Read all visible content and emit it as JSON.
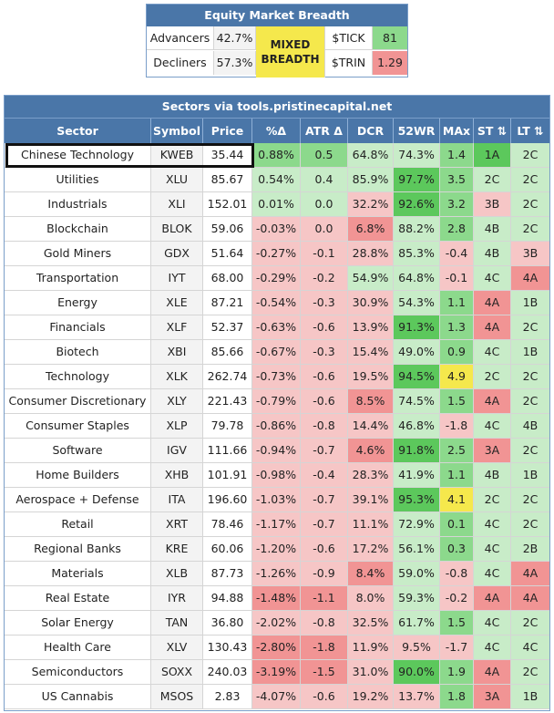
{
  "breadth": {
    "title": "Equity Market Breadth",
    "advancers_label": "Advancers",
    "advancers_value": "42.7%",
    "decliners_label": "Decliners",
    "decliners_value": "57.3%",
    "state_line1": "MIXED",
    "state_line2": "BREADTH",
    "tick_label": "$TICK",
    "tick_value": "81",
    "trin_label": "$TRIN",
    "trin_value": "1.29",
    "colors": {
      "mixed": "#f5e84c",
      "tick": "#8cd98c",
      "trin": "#f19494"
    }
  },
  "sectors": {
    "title": "Sectors via tools.pristinecapital.net",
    "columns": [
      "Sector",
      "Symbol",
      "Price",
      "%Δ",
      "ATR Δ",
      "DCR",
      "52WR",
      "MAx",
      "ST ⇅",
      "LT ⇅"
    ],
    "rows": [
      {
        "sector": "Chinese Technology",
        "symbol": "KWEB",
        "price": "35.44",
        "pct": "0.88%",
        "atr": "0.5",
        "dcr": "64.8%",
        "wr": "74.3%",
        "max": "1.4",
        "st": "1A",
        "lt": "2C",
        "cpct": "g2",
        "catr": "g2",
        "cdcr": "g1",
        "cwr": "g1",
        "cmax": "g2",
        "cst": "g3",
        "clt": "g1"
      },
      {
        "sector": "Utilities",
        "symbol": "XLU",
        "price": "85.67",
        "pct": "0.54%",
        "atr": "0.4",
        "dcr": "85.9%",
        "wr": "97.7%",
        "max": "3.5",
        "st": "2C",
        "lt": "2C",
        "cpct": "g1",
        "catr": "g1",
        "cdcr": "g1",
        "cwr": "g3",
        "cmax": "g2",
        "cst": "g1",
        "clt": "g1"
      },
      {
        "sector": "Industrials",
        "symbol": "XLI",
        "price": "152.01",
        "pct": "0.01%",
        "atr": "0.0",
        "dcr": "32.2%",
        "wr": "92.6%",
        "max": "3.2",
        "st": "3B",
        "lt": "2C",
        "cpct": "g1",
        "catr": "g1",
        "cdcr": "r1",
        "cwr": "g3",
        "cmax": "g2",
        "cst": "r1",
        "clt": "g1"
      },
      {
        "sector": "Blockchain",
        "symbol": "BLOK",
        "price": "59.06",
        "pct": "-0.03%",
        "atr": "0.0",
        "dcr": "6.8%",
        "wr": "88.2%",
        "max": "2.8",
        "st": "4B",
        "lt": "2C",
        "cpct": "r1",
        "catr": "r1",
        "cdcr": "r2",
        "cwr": "g1",
        "cmax": "g2",
        "cst": "g1",
        "clt": "g1"
      },
      {
        "sector": "Gold Miners",
        "symbol": "GDX",
        "price": "51.64",
        "pct": "-0.27%",
        "atr": "-0.1",
        "dcr": "28.8%",
        "wr": "85.3%",
        "max": "-0.4",
        "st": "4B",
        "lt": "3B",
        "cpct": "r1",
        "catr": "r1",
        "cdcr": "r1",
        "cwr": "g1",
        "cmax": "r1",
        "cst": "g1",
        "clt": "r1"
      },
      {
        "sector": "Transportation",
        "symbol": "IYT",
        "price": "68.00",
        "pct": "-0.29%",
        "atr": "-0.2",
        "dcr": "54.9%",
        "wr": "64.8%",
        "max": "-0.1",
        "st": "4C",
        "lt": "4A",
        "cpct": "r1",
        "catr": "r1",
        "cdcr": "g1",
        "cwr": "g1",
        "cmax": "r1",
        "cst": "g1",
        "clt": "r2"
      },
      {
        "sector": "Energy",
        "symbol": "XLE",
        "price": "87.21",
        "pct": "-0.54%",
        "atr": "-0.3",
        "dcr": "30.9%",
        "wr": "54.3%",
        "max": "1.1",
        "st": "4A",
        "lt": "1B",
        "cpct": "r1",
        "catr": "r1",
        "cdcr": "r1",
        "cwr": "g1",
        "cmax": "g2",
        "cst": "r2",
        "clt": "g1"
      },
      {
        "sector": "Financials",
        "symbol": "XLF",
        "price": "52.37",
        "pct": "-0.63%",
        "atr": "-0.6",
        "dcr": "13.9%",
        "wr": "91.3%",
        "max": "1.3",
        "st": "4A",
        "lt": "2C",
        "cpct": "r1",
        "catr": "r1",
        "cdcr": "r1",
        "cwr": "g3",
        "cmax": "g2",
        "cst": "r2",
        "clt": "g1"
      },
      {
        "sector": "Biotech",
        "symbol": "XBI",
        "price": "85.66",
        "pct": "-0.67%",
        "atr": "-0.3",
        "dcr": "15.4%",
        "wr": "49.0%",
        "max": "0.9",
        "st": "4C",
        "lt": "1B",
        "cpct": "r1",
        "catr": "r1",
        "cdcr": "r1",
        "cwr": "g1",
        "cmax": "g2",
        "cst": "g1",
        "clt": "g1"
      },
      {
        "sector": "Technology",
        "symbol": "XLK",
        "price": "262.74",
        "pct": "-0.73%",
        "atr": "-0.6",
        "dcr": "19.5%",
        "wr": "94.5%",
        "max": "4.9",
        "st": "2C",
        "lt": "2C",
        "cpct": "r1",
        "catr": "r1",
        "cdcr": "r1",
        "cwr": "g3",
        "cmax": "yw",
        "cst": "g1",
        "clt": "g1"
      },
      {
        "sector": "Consumer Discretionary",
        "symbol": "XLY",
        "price": "221.43",
        "pct": "-0.79%",
        "atr": "-0.6",
        "dcr": "8.5%",
        "wr": "74.5%",
        "max": "1.5",
        "st": "4A",
        "lt": "2C",
        "cpct": "r1",
        "catr": "r1",
        "cdcr": "r2",
        "cwr": "g1",
        "cmax": "g2",
        "cst": "r2",
        "clt": "g1"
      },
      {
        "sector": "Consumer Staples",
        "symbol": "XLP",
        "price": "79.78",
        "pct": "-0.86%",
        "atr": "-0.8",
        "dcr": "14.4%",
        "wr": "46.8%",
        "max": "-1.8",
        "st": "4C",
        "lt": "4B",
        "cpct": "r1",
        "catr": "r1",
        "cdcr": "r1",
        "cwr": "g1",
        "cmax": "r1",
        "cst": "g1",
        "clt": "g1"
      },
      {
        "sector": "Software",
        "symbol": "IGV",
        "price": "111.66",
        "pct": "-0.94%",
        "atr": "-0.7",
        "dcr": "4.6%",
        "wr": "91.8%",
        "max": "2.5",
        "st": "3A",
        "lt": "2C",
        "cpct": "r1",
        "catr": "r1",
        "cdcr": "r2",
        "cwr": "g3",
        "cmax": "g2",
        "cst": "r2",
        "clt": "g1"
      },
      {
        "sector": "Home Builders",
        "symbol": "XHB",
        "price": "101.91",
        "pct": "-0.98%",
        "atr": "-0.4",
        "dcr": "28.3%",
        "wr": "41.9%",
        "max": "1.1",
        "st": "4B",
        "lt": "1B",
        "cpct": "r1",
        "catr": "r1",
        "cdcr": "r1",
        "cwr": "g1",
        "cmax": "g2",
        "cst": "g1",
        "clt": "g1"
      },
      {
        "sector": "Aerospace + Defense",
        "symbol": "ITA",
        "price": "196.60",
        "pct": "-1.03%",
        "atr": "-0.7",
        "dcr": "39.1%",
        "wr": "95.3%",
        "max": "4.1",
        "st": "2C",
        "lt": "2C",
        "cpct": "r1",
        "catr": "r1",
        "cdcr": "r1",
        "cwr": "g3",
        "cmax": "yw",
        "cst": "g1",
        "clt": "g1"
      },
      {
        "sector": "Retail",
        "symbol": "XRT",
        "price": "78.46",
        "pct": "-1.17%",
        "atr": "-0.7",
        "dcr": "11.1%",
        "wr": "72.9%",
        "max": "0.1",
        "st": "4C",
        "lt": "2C",
        "cpct": "r1",
        "catr": "r1",
        "cdcr": "r1",
        "cwr": "g1",
        "cmax": "g2",
        "cst": "g1",
        "clt": "g1"
      },
      {
        "sector": "Regional Banks",
        "symbol": "KRE",
        "price": "60.06",
        "pct": "-1.20%",
        "atr": "-0.6",
        "dcr": "17.2%",
        "wr": "56.1%",
        "max": "0.3",
        "st": "4C",
        "lt": "2B",
        "cpct": "r1",
        "catr": "r1",
        "cdcr": "r1",
        "cwr": "g1",
        "cmax": "g2",
        "cst": "g1",
        "clt": "g1"
      },
      {
        "sector": "Materials",
        "symbol": "XLB",
        "price": "87.73",
        "pct": "-1.26%",
        "atr": "-0.9",
        "dcr": "8.4%",
        "wr": "59.0%",
        "max": "-0.8",
        "st": "4C",
        "lt": "4A",
        "cpct": "r1",
        "catr": "r1",
        "cdcr": "r2",
        "cwr": "g1",
        "cmax": "r1",
        "cst": "g1",
        "clt": "r2"
      },
      {
        "sector": "Real Estate",
        "symbol": "IYR",
        "price": "94.88",
        "pct": "-1.48%",
        "atr": "-1.1",
        "dcr": "8.0%",
        "wr": "59.3%",
        "max": "-0.2",
        "st": "4A",
        "lt": "4A",
        "cpct": "r2",
        "catr": "r2",
        "cdcr": "r1",
        "cwr": "g1",
        "cmax": "r1",
        "cst": "r2",
        "clt": "r2"
      },
      {
        "sector": "Solar Energy",
        "symbol": "TAN",
        "price": "36.80",
        "pct": "-2.02%",
        "atr": "-0.8",
        "dcr": "32.5%",
        "wr": "61.7%",
        "max": "1.5",
        "st": "4C",
        "lt": "2C",
        "cpct": "r1",
        "catr": "r1",
        "cdcr": "r1",
        "cwr": "g1",
        "cmax": "g2",
        "cst": "g1",
        "clt": "g1"
      },
      {
        "sector": "Health Care",
        "symbol": "XLV",
        "price": "130.43",
        "pct": "-2.80%",
        "atr": "-1.8",
        "dcr": "11.9%",
        "wr": "9.5%",
        "max": "-1.7",
        "st": "4C",
        "lt": "4C",
        "cpct": "r2",
        "catr": "r2",
        "cdcr": "r1",
        "cwr": "r1",
        "cmax": "r1",
        "cst": "g1",
        "clt": "g1"
      },
      {
        "sector": "Semiconductors",
        "symbol": "SOXX",
        "price": "240.03",
        "pct": "-3.19%",
        "atr": "-1.5",
        "dcr": "31.0%",
        "wr": "90.0%",
        "max": "1.9",
        "st": "4A",
        "lt": "2C",
        "cpct": "r2",
        "catr": "r2",
        "cdcr": "r1",
        "cwr": "g3",
        "cmax": "g2",
        "cst": "r2",
        "clt": "g1"
      },
      {
        "sector": "US Cannabis",
        "symbol": "MSOS",
        "price": "2.83",
        "pct": "-4.07%",
        "atr": "-0.6",
        "dcr": "19.2%",
        "wr": "13.7%",
        "max": "1.8",
        "st": "3A",
        "lt": "1B",
        "cpct": "r1",
        "catr": "r1",
        "cdcr": "r1",
        "cwr": "r1",
        "cmax": "g2",
        "cst": "r2",
        "clt": "g1"
      }
    ]
  }
}
